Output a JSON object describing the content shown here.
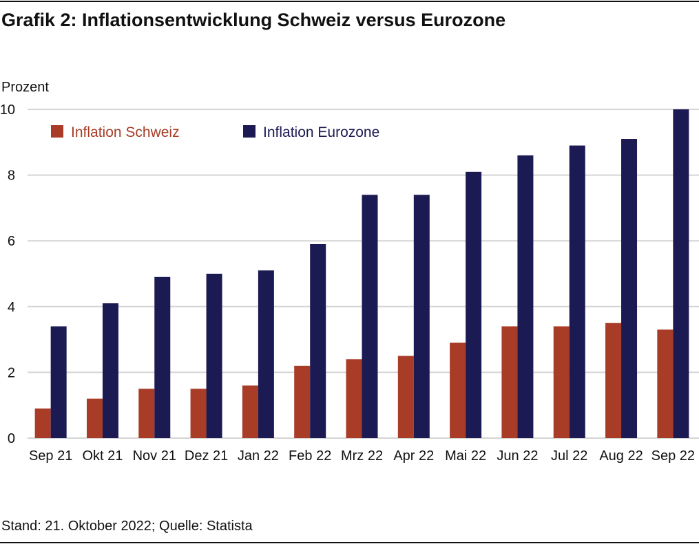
{
  "title": "Grafik 2: Inflationsentwicklung Schweiz versus Eurozone",
  "source": "Stand: 21. Oktober 2022; Quelle: Statista",
  "chart_data": {
    "type": "bar",
    "title": "Grafik 2: Inflationsentwicklung Schweiz versus Eurozone",
    "ylabel": "Prozent",
    "xlabel": "",
    "ylim": [
      0,
      10
    ],
    "yticks": [
      0,
      2,
      4,
      6,
      8,
      10
    ],
    "grid": true,
    "legend_position": "top-left",
    "categories": [
      "Sep 21",
      "Okt 21",
      "Nov 21",
      "Dez 21",
      "Jan 22",
      "Feb 22",
      "Mrz 22",
      "Apr 22",
      "Mai 22",
      "Jun 22",
      "Jul 22",
      "Aug 22",
      "Sep 22"
    ],
    "series": [
      {
        "name": "Inflation Schweiz",
        "color": "#a83c27",
        "values": [
          0.9,
          1.2,
          1.5,
          1.5,
          1.6,
          2.2,
          2.4,
          2.5,
          2.9,
          3.4,
          3.4,
          3.5,
          3.3
        ]
      },
      {
        "name": "Inflation Eurozone",
        "color": "#1c1a52",
        "values": [
          3.4,
          4.1,
          4.9,
          5.0,
          5.1,
          5.9,
          7.4,
          7.4,
          8.1,
          8.6,
          8.9,
          9.1,
          10.0
        ]
      }
    ]
  }
}
